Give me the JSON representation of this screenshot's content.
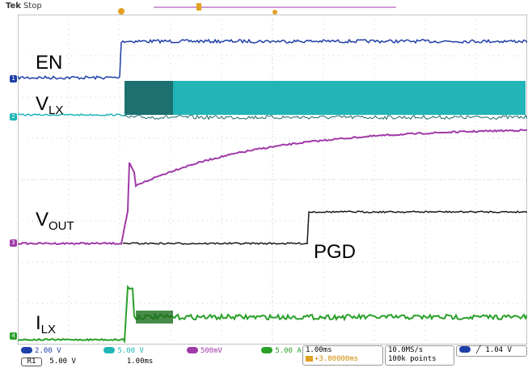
{
  "header": {
    "brand": "Tek",
    "status": "Stop"
  },
  "labels": {
    "en": "EN",
    "vlx_main": "V",
    "vlx_sub": "LX",
    "vout_main": "V",
    "vout_sub": "OUT",
    "pgd": "PGD",
    "ilx_main": "I",
    "ilx_sub": "LX"
  },
  "channel_markers": [
    "1",
    "2",
    "3",
    "4"
  ],
  "colors": {
    "ch1": "#1f3fa8",
    "ch2": "#22b5b8",
    "ch3": "#a03aa8",
    "ch4": "#2aa02a",
    "pgd": "#1a1a1a",
    "grid": "#bbbbbb"
  },
  "status": {
    "ch1": "2.00 V",
    "ch2": "5.00 V",
    "ch3": "500mV",
    "ch4": "5.00 A",
    "ref_label": "R1",
    "ref_scale": "5.00 V",
    "ref_time": "1.00ms",
    "timebase": "1.00ms",
    "trigger_pos": "+3.00000ms",
    "sample_rate": "10.0MS/s",
    "record_length": "100k points",
    "trigger_level": "1.04 V"
  }
}
